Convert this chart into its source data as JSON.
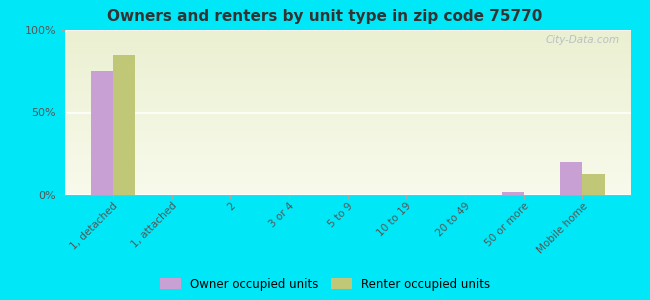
{
  "title": "Owners and renters by unit type in zip code 75770",
  "categories": [
    "1, detached",
    "1, attached",
    "2",
    "3 or 4",
    "5 to 9",
    "10 to 19",
    "20 to 49",
    "50 or more",
    "Mobile home"
  ],
  "owner_values": [
    75,
    0,
    0,
    0,
    0,
    0,
    0,
    2,
    20
  ],
  "renter_values": [
    85,
    0,
    0,
    0,
    0,
    0,
    0,
    0,
    13
  ],
  "owner_color": "#c8a0d4",
  "renter_color": "#c0c878",
  "background_outer": "#00e8f8",
  "ylim": [
    0,
    100
  ],
  "yticks": [
    0,
    50,
    100
  ],
  "ytick_labels": [
    "0%",
    "50%",
    "100%"
  ],
  "legend_owner": "Owner occupied units",
  "legend_renter": "Renter occupied units",
  "watermark": "City-Data.com"
}
